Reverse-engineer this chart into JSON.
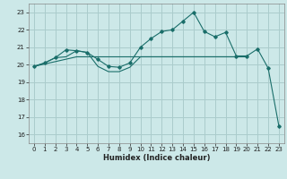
{
  "xlabel": "Humidex (Indice chaleur)",
  "bg_color": "#cce8e8",
  "grid_color": "#aacccc",
  "line_color": "#1a6e6a",
  "xlim": [
    -0.5,
    23.5
  ],
  "ylim": [
    15.5,
    23.5
  ],
  "xticks": [
    0,
    1,
    2,
    3,
    4,
    5,
    6,
    7,
    8,
    9,
    10,
    11,
    12,
    13,
    14,
    15,
    16,
    17,
    18,
    19,
    20,
    21,
    22,
    23
  ],
  "yticks": [
    16,
    17,
    18,
    19,
    20,
    21,
    22,
    23
  ],
  "curve1_x": [
    0,
    1,
    2,
    3,
    4,
    5,
    6,
    7,
    8,
    9,
    10,
    11,
    12,
    13,
    14,
    15,
    16,
    17,
    18,
    19,
    20,
    21,
    22,
    23
  ],
  "curve1_y": [
    19.9,
    20.1,
    20.4,
    20.85,
    20.8,
    20.7,
    20.3,
    19.9,
    19.85,
    20.1,
    21.0,
    21.5,
    21.9,
    22.0,
    22.5,
    23.0,
    21.9,
    21.6,
    21.85,
    20.5,
    20.5,
    20.9,
    19.8,
    16.5
  ],
  "curve2_x": [
    0,
    4,
    19,
    20
  ],
  "curve2_y": [
    19.9,
    20.45,
    20.45,
    20.45
  ],
  "curve3_x": [
    0,
    1,
    2,
    3,
    4,
    5,
    6,
    7,
    8,
    9,
    10,
    11,
    12,
    13,
    14,
    15,
    16,
    17,
    18,
    19,
    20
  ],
  "curve3_y": [
    19.9,
    20.1,
    20.4,
    20.45,
    20.8,
    20.7,
    19.9,
    19.6,
    19.6,
    19.85,
    20.45,
    20.45,
    20.45,
    20.45,
    20.45,
    20.45,
    20.45,
    20.45,
    20.45,
    20.45,
    20.45
  ],
  "xlabel_fontsize": 6.0,
  "tick_fontsize": 5.0
}
